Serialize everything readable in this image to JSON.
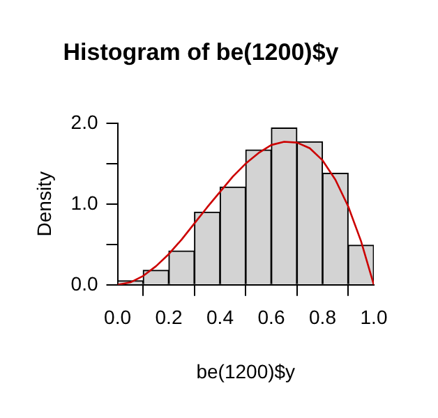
{
  "chart_data": {
    "type": "histogram",
    "title": "Histogram of be(1200)$y",
    "xlabel": "be(1200)$y",
    "ylabel": "Density",
    "bins": [
      0,
      0.1,
      0.2,
      0.3,
      0.4,
      0.5,
      0.6,
      0.7,
      0.8,
      0.9,
      1.0
    ],
    "values": [
      0.05,
      0.18,
      0.42,
      0.9,
      1.21,
      1.67,
      1.94,
      1.77,
      1.38,
      0.49
    ],
    "color": "#d3d3d3",
    "series": [
      {
        "type": "line",
        "color": "#cc0000",
        "x": [
          0,
          0.05,
          0.1,
          0.15,
          0.2,
          0.25,
          0.3,
          0.35,
          0.4,
          0.45,
          0.5,
          0.55,
          0.6,
          0.65,
          0.7,
          0.75,
          0.8,
          0.85,
          0.9,
          0.95,
          1.0
        ],
        "values": [
          0,
          0.03,
          0.11,
          0.23,
          0.38,
          0.56,
          0.76,
          0.96,
          1.15,
          1.34,
          1.5,
          1.63,
          1.73,
          1.77,
          1.76,
          1.69,
          1.54,
          1.3,
          0.97,
          0.54,
          0
        ]
      }
    ],
    "xlim": [
      0,
      1
    ],
    "ylim": [
      0,
      2
    ],
    "xticks": [
      {
        "value": 0,
        "label": "0.0"
      },
      0.2,
      0.4,
      0.6,
      0.8,
      {
        "value": 1,
        "label": "1.0"
      }
    ],
    "yticks": [
      {
        "value": 0,
        "label": "0.0"
      },
      {
        "value": 0.5,
        "label": null
      },
      {
        "value": 1,
        "label": "1.0"
      },
      {
        "value": 1.5,
        "label": null
      },
      {
        "value": 2,
        "label": "2.0"
      }
    ],
    "grid": false,
    "legend": false,
    "marker": "none",
    "line_style": "solid"
  }
}
